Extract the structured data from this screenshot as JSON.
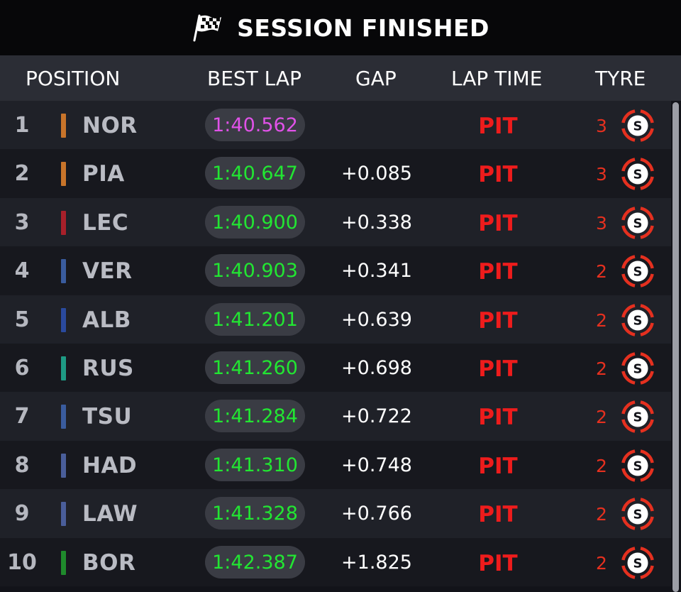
{
  "banner": {
    "title": "SESSION FINISHED",
    "icon": "checkered-flag-icon"
  },
  "columns": {
    "position": "POSITION",
    "best_lap": "BEST LAP",
    "gap": "GAP",
    "lap_time": "LAP TIME",
    "tyre": "TYRE"
  },
  "colors": {
    "fastest_lap": "#e052e8",
    "personal_best": "#22e632",
    "pit": "#ee1c1c",
    "tyre_soft": "#e5301f"
  },
  "rows": [
    {
      "position": "1",
      "driver": "NOR",
      "team_color": "#c8742a",
      "best_lap": "1:40.562",
      "best_lap_color": "#e052e8",
      "gap": "",
      "lap_time": "PIT",
      "tyre_laps": "3",
      "tyre_compound": "S"
    },
    {
      "position": "2",
      "driver": "PIA",
      "team_color": "#c8742a",
      "best_lap": "1:40.647",
      "best_lap_color": "#22e632",
      "gap": "+0.085",
      "lap_time": "PIT",
      "tyre_laps": "3",
      "tyre_compound": "S"
    },
    {
      "position": "3",
      "driver": "LEC",
      "team_color": "#a8202a",
      "best_lap": "1:40.900",
      "best_lap_color": "#22e632",
      "gap": "+0.338",
      "lap_time": "PIT",
      "tyre_laps": "3",
      "tyre_compound": "S"
    },
    {
      "position": "4",
      "driver": "VER",
      "team_color": "#3a5c9e",
      "best_lap": "1:40.903",
      "best_lap_color": "#22e632",
      "gap": "+0.341",
      "lap_time": "PIT",
      "tyre_laps": "2",
      "tyre_compound": "S"
    },
    {
      "position": "5",
      "driver": "ALB",
      "team_color": "#2a4a9e",
      "best_lap": "1:41.201",
      "best_lap_color": "#22e632",
      "gap": "+0.639",
      "lap_time": "PIT",
      "tyre_laps": "2",
      "tyre_compound": "S"
    },
    {
      "position": "6",
      "driver": "RUS",
      "team_color": "#1e9a84",
      "best_lap": "1:41.260",
      "best_lap_color": "#22e632",
      "gap": "+0.698",
      "lap_time": "PIT",
      "tyre_laps": "2",
      "tyre_compound": "S"
    },
    {
      "position": "7",
      "driver": "TSU",
      "team_color": "#3a5c9e",
      "best_lap": "1:41.284",
      "best_lap_color": "#22e632",
      "gap": "+0.722",
      "lap_time": "PIT",
      "tyre_laps": "2",
      "tyre_compound": "S"
    },
    {
      "position": "8",
      "driver": "HAD",
      "team_color": "#4a5e9a",
      "best_lap": "1:41.310",
      "best_lap_color": "#22e632",
      "gap": "+0.748",
      "lap_time": "PIT",
      "tyre_laps": "2",
      "tyre_compound": "S"
    },
    {
      "position": "9",
      "driver": "LAW",
      "team_color": "#4a5e9a",
      "best_lap": "1:41.328",
      "best_lap_color": "#22e632",
      "gap": "+0.766",
      "lap_time": "PIT",
      "tyre_laps": "2",
      "tyre_compound": "S"
    },
    {
      "position": "10",
      "driver": "BOR",
      "team_color": "#1f8a2c",
      "best_lap": "1:42.387",
      "best_lap_color": "#22e632",
      "gap": "+1.825",
      "lap_time": "PIT",
      "tyre_laps": "2",
      "tyre_compound": "S"
    }
  ]
}
